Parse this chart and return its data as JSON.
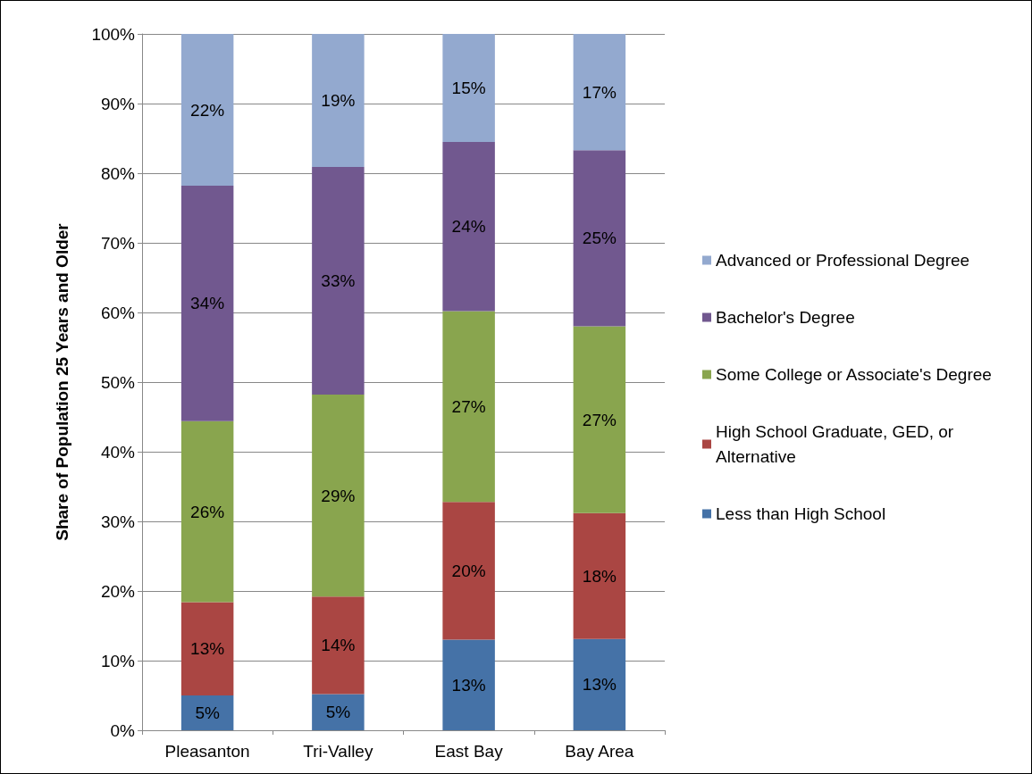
{
  "chart_data": {
    "type": "bar",
    "stacked": true,
    "ylabel": "Share of Population 25 Years and Older",
    "categories": [
      "Pleasanton",
      "Tri-Valley",
      "East Bay",
      "Bay Area"
    ],
    "series": [
      {
        "name": "Less than High School",
        "color": "#4572a7",
        "values": [
          5,
          5.2,
          13,
          13.1
        ],
        "value_labels": [
          "5%",
          "5%",
          "13%",
          "13%"
        ]
      },
      {
        "name": "High School Graduate, GED, or Alternative",
        "color": "#aa4643",
        "values": [
          13.4,
          14,
          19.8,
          18.1
        ],
        "value_labels": [
          "13%",
          "14%",
          "20%",
          "18%"
        ]
      },
      {
        "name": "Some College or Associate's Degree",
        "color": "#89a54e",
        "values": [
          26,
          29,
          27.4,
          26.8
        ],
        "value_labels": [
          "26%",
          "29%",
          "27%",
          "27%"
        ]
      },
      {
        "name": "Bachelor's Degree",
        "color": "#71588f",
        "values": [
          33.8,
          32.7,
          24.3,
          25.3
        ],
        "value_labels": [
          "34%",
          "33%",
          "24%",
          "25%"
        ]
      },
      {
        "name": "Advanced or Professional Degree",
        "color": "#93a9cf",
        "values": [
          21.8,
          19.1,
          15.5,
          16.7
        ],
        "value_labels": [
          "22%",
          "19%",
          "15%",
          "17%"
        ]
      }
    ],
    "ylim": [
      0,
      100
    ],
    "yticks": [
      {
        "value": 0,
        "label": "0%"
      },
      {
        "value": 10,
        "label": "10%"
      },
      {
        "value": 20,
        "label": "20%"
      },
      {
        "value": 30,
        "label": "30%"
      },
      {
        "value": 40,
        "label": "40%"
      },
      {
        "value": 50,
        "label": "50%"
      },
      {
        "value": 60,
        "label": "60%"
      },
      {
        "value": 70,
        "label": "70%"
      },
      {
        "value": 80,
        "label": "80%"
      },
      {
        "value": 90,
        "label": "90%"
      },
      {
        "value": 100,
        "label": "100%"
      }
    ],
    "grid": "y",
    "legend": "right"
  }
}
